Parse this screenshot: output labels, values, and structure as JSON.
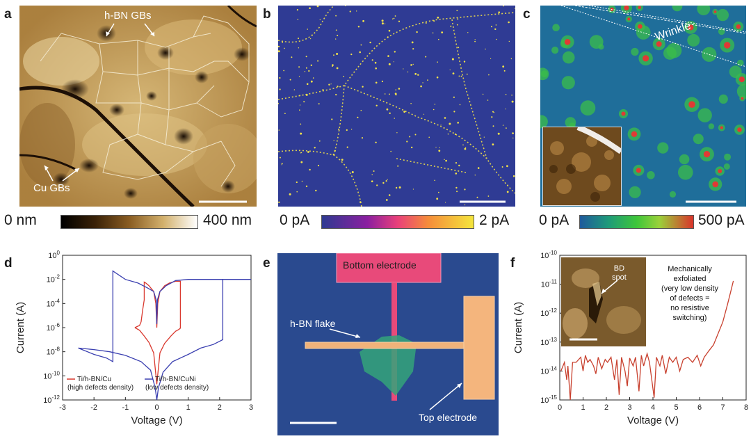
{
  "panels": {
    "a": {
      "letter": "a",
      "annotations": {
        "hbn_gbs": "h-BN GBs",
        "cu_gbs": "Cu GBs"
      },
      "colorbar": {
        "min_label": "0 nm",
        "max_label": "400 nm"
      }
    },
    "b": {
      "letter": "b",
      "colorbar": {
        "min_label": "0 pA",
        "max_label": "2 pA"
      }
    },
    "c": {
      "letter": "c",
      "annotations": {
        "wrinkle": "Wrinkle"
      },
      "colorbar": {
        "min_label": "0 pA",
        "max_label": "500 pA"
      }
    },
    "d": {
      "letter": "d"
    },
    "e": {
      "letter": "e",
      "annotations": {
        "bottom_electrode": "Bottom electrode",
        "hbn_flake": "h-BN flake",
        "top_electrode": "Top electrode"
      }
    },
    "f": {
      "letter": "f",
      "annotations": {
        "bd_spot": [
          "BD",
          "spot"
        ],
        "note": [
          "Mechanically",
          "exfoliated",
          "(very low density",
          "of defects =",
          "no resistive",
          "switching)"
        ]
      }
    }
  },
  "chart_data": [
    {
      "id": "d",
      "type": "line",
      "xlabel": "Voltage (V)",
      "ylabel": "Current (A)",
      "xlim": [
        -3,
        3
      ],
      "ylim": [
        1e-12,
        1
      ],
      "yscale": "log",
      "x_ticks": [
        "-3",
        "-2",
        "-1",
        "0",
        "1",
        "2",
        "3"
      ],
      "y_ticks": [
        {
          "base": "10",
          "exp": "0"
        },
        {
          "base": "10",
          "exp": "-2"
        },
        {
          "base": "10",
          "exp": "-4"
        },
        {
          "base": "10",
          "exp": "-6"
        },
        {
          "base": "10",
          "exp": "-8"
        },
        {
          "base": "10",
          "exp": "-10"
        },
        {
          "base": "10",
          "exp": "-12"
        }
      ],
      "legend": "bottom",
      "series": [
        {
          "name": "Ti/h-BN/Cu",
          "sub": "(high defects density)",
          "color": "#d9382e",
          "points": [
            [
              -0.7,
              1e-06
            ],
            [
              -0.55,
              6e-07
            ],
            [
              -0.4,
              2e-07
            ],
            [
              -0.25,
              6e-08
            ],
            [
              -0.1,
              8e-09
            ],
            [
              0,
              2e-11
            ],
            [
              0.1,
              8e-09
            ],
            [
              0.25,
              5e-08
            ],
            [
              0.45,
              2e-07
            ],
            [
              0.6,
              5e-07
            ],
            [
              0.7,
              7e-07
            ],
            [
              0.75,
              9e-07
            ],
            [
              0.75,
              0.007
            ],
            [
              0.6,
              0.007
            ],
            [
              0.4,
              0.005
            ],
            [
              0.25,
              0.003
            ],
            [
              0.1,
              0.001
            ],
            [
              0.03,
              0.0001
            ],
            [
              0,
              1e-06
            ],
            [
              -0.03,
              0.0001
            ],
            [
              -0.1,
              0.001
            ],
            [
              -0.25,
              0.003
            ],
            [
              -0.35,
              0.005
            ],
            [
              -0.4,
              0.006
            ],
            [
              -0.4,
              0.0002
            ],
            [
              -0.45,
              3e-05
            ],
            [
              -0.5,
              3e-06
            ],
            [
              -0.55,
              1.5e-06
            ],
            [
              -0.7,
              1e-06
            ]
          ]
        },
        {
          "name": "Ti/h-BN/CuNi",
          "sub": "(low defects density)",
          "color": "#3a3fb0",
          "points": [
            [
              -2.5,
              2e-08
            ],
            [
              -2,
              6e-09
            ],
            [
              -1.6,
              3e-09
            ],
            [
              -1.4,
              1.5e-09
            ],
            [
              -1.4,
              0.01
            ],
            [
              -1.4,
              0.05
            ],
            [
              -1.0,
              0.01
            ],
            [
              -0.6,
              0.005
            ],
            [
              -0.3,
              0.002
            ],
            [
              -0.1,
              0.001
            ],
            [
              -0.02,
              0.0002
            ],
            [
              0,
              2e-06
            ],
            [
              0.02,
              0.0002
            ],
            [
              0.1,
              0.001
            ],
            [
              0.3,
              0.003
            ],
            [
              0.6,
              0.008
            ],
            [
              1.0,
              0.01
            ],
            [
              1.5,
              0.01
            ],
            [
              2.0,
              0.01
            ],
            [
              3.0,
              0.01
            ],
            [
              2.1,
              0.01
            ],
            [
              2.1,
              1e-07
            ],
            [
              1.8,
              4e-08
            ],
            [
              1.4,
              2e-08
            ],
            [
              1.0,
              6e-09
            ],
            [
              0.5,
              1.5e-09
            ],
            [
              0.2,
              2e-10
            ],
            [
              0.05,
              1e-11
            ],
            [
              0,
              1e-12
            ],
            [
              -0.05,
              1e-11
            ],
            [
              -0.2,
              3e-10
            ],
            [
              -0.5,
              1.5e-09
            ],
            [
              -1.0,
              5e-09
            ],
            [
              -1.5,
              1e-08
            ],
            [
              -2.0,
              1.5e-08
            ],
            [
              -2.5,
              2e-08
            ]
          ]
        }
      ]
    },
    {
      "id": "f",
      "type": "line",
      "xlabel": "Voltage (V)",
      "ylabel": "Current (A)",
      "xlim": [
        0,
        8
      ],
      "ylim": [
        1e-15,
        1e-10
      ],
      "yscale": "log",
      "x_ticks": [
        "0",
        "1",
        "2",
        "3",
        "4",
        "5",
        "6",
        "7",
        "8"
      ],
      "y_ticks": [
        {
          "base": "10",
          "exp": "-10"
        },
        {
          "base": "10",
          "exp": "-11"
        },
        {
          "base": "10",
          "exp": "-12"
        },
        {
          "base": "10",
          "exp": "-13"
        },
        {
          "base": "10",
          "exp": "-14"
        },
        {
          "base": "10",
          "exp": "-15"
        }
      ],
      "series": [
        {
          "color": "#c8402e",
          "points": [
            [
              0.05,
              1e-14
            ],
            [
              0.2,
              2e-14
            ],
            [
              0.3,
              5e-15
            ],
            [
              0.35,
              1.5e-14
            ],
            [
              0.45,
              1e-15
            ],
            [
              0.55,
              2e-14
            ],
            [
              0.7,
              2e-14
            ],
            [
              0.9,
              3e-14
            ],
            [
              1.0,
              1e-14
            ],
            [
              1.1,
              3.5e-14
            ],
            [
              1.2,
              2e-14
            ],
            [
              1.3,
              2.5e-14
            ],
            [
              1.45,
              1.5e-14
            ],
            [
              1.55,
              8e-15
            ],
            [
              1.65,
              3e-14
            ],
            [
              1.8,
              1.2e-14
            ],
            [
              1.95,
              2.5e-14
            ],
            [
              2.05,
              2e-14
            ],
            [
              2.2,
              3e-14
            ],
            [
              2.35,
              5e-15
            ],
            [
              2.45,
              2.5e-14
            ],
            [
              2.55,
              1.5e-15
            ],
            [
              2.65,
              3e-14
            ],
            [
              2.8,
              1e-14
            ],
            [
              2.9,
              3e-15
            ],
            [
              3.0,
              2.8e-14
            ],
            [
              3.15,
              1.5e-14
            ],
            [
              3.25,
              3e-14
            ],
            [
              3.4,
              2e-15
            ],
            [
              3.5,
              3.5e-14
            ],
            [
              3.6,
              1.5e-14
            ],
            [
              3.75,
              4e-14
            ],
            [
              3.85,
              2e-14
            ],
            [
              3.95,
              5e-15
            ],
            [
              4.05,
              1.2e-15
            ],
            [
              4.15,
              3e-14
            ],
            [
              4.3,
              1.5e-14
            ],
            [
              4.4,
              3.5e-14
            ],
            [
              4.55,
              8e-15
            ],
            [
              4.7,
              3e-14
            ],
            [
              4.85,
              2e-14
            ],
            [
              5.0,
              3e-14
            ],
            [
              5.15,
              1e-14
            ],
            [
              5.3,
              2.5e-14
            ],
            [
              5.5,
              3e-14
            ],
            [
              5.7,
              2e-14
            ],
            [
              5.9,
              3.5e-14
            ],
            [
              6.05,
              1.5e-14
            ],
            [
              6.2,
              3e-14
            ],
            [
              6.4,
              5e-14
            ],
            [
              6.6,
              8e-14
            ],
            [
              6.8,
              2e-13
            ],
            [
              7.0,
              5e-13
            ],
            [
              7.2,
              2e-12
            ],
            [
              7.35,
              6e-12
            ],
            [
              7.45,
              1.3e-11
            ]
          ]
        }
      ]
    }
  ]
}
